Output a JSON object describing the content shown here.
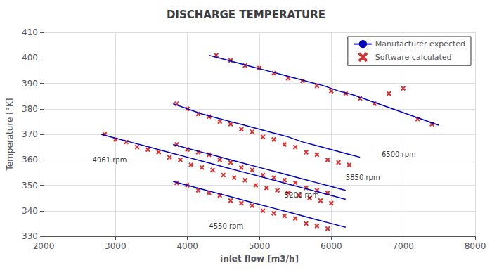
{
  "chart_data": {
    "type": "line",
    "title": "DISCHARGE TEMPERATURE",
    "xlabel": "inlet flow [m3/h]",
    "ylabel": "Temperature [°K]",
    "xlim": [
      2000,
      8000
    ],
    "ylim": [
      330,
      410
    ],
    "xticks": [
      2000,
      3000,
      4000,
      5000,
      6000,
      7000,
      8000
    ],
    "yticks": [
      330,
      340,
      350,
      360,
      370,
      380,
      390,
      400,
      410
    ],
    "grid": true,
    "legend": "upper right",
    "series": [
      {
        "name": "Manufacturer expected",
        "type": "line",
        "marker": "none",
        "color": "#0000bb",
        "x": [
          3800,
          4000,
          4200,
          4400,
          4600,
          4800,
          5000,
          5200,
          5400,
          5600,
          5800,
          6000,
          6200
        ],
        "values": [
          351.5,
          350,
          348.5,
          347,
          345.5,
          344,
          342.5,
          341,
          339.5,
          338,
          336.5,
          335,
          333.5
        ]
      },
      {
        "name": "Software calculated",
        "type": "scatter",
        "marker": "x",
        "color": "#cc0000",
        "x": [
          3850,
          4000,
          4150,
          4300,
          4450,
          4600,
          4750,
          4900,
          5050,
          5200,
          5350,
          5500,
          5650,
          5800,
          5950
        ],
        "values": [
          351,
          350,
          348,
          347,
          346,
          344,
          343,
          342,
          340,
          339,
          338,
          337,
          335,
          334,
          333
        ]
      },
      {
        "name": "Manufacturer expected",
        "type": "line",
        "marker": "none",
        "color": "#0000bb",
        "x": [
          2800,
          3000,
          3200,
          3400,
          3600,
          3800,
          4000,
          4200,
          4400,
          4600,
          4800,
          5000,
          5200,
          5400,
          5600,
          5800,
          6000,
          6200
        ],
        "values": [
          370,
          368.5,
          367,
          365.5,
          364,
          362.5,
          361,
          359.5,
          358,
          356.5,
          355,
          353.5,
          352,
          350.5,
          349,
          347.5,
          346,
          344.5
        ]
      },
      {
        "name": "Software calculated",
        "type": "scatter",
        "marker": "x",
        "color": "#cc0000",
        "x": [
          2850,
          3000,
          3150,
          3300,
          3450,
          3600,
          3750,
          3900,
          4050,
          4200,
          4350,
          4500,
          4650,
          4800,
          4950,
          5100,
          5250,
          5400,
          5550,
          5700,
          5850,
          6000
        ],
        "values": [
          370,
          368,
          367,
          365,
          364,
          363,
          361,
          360,
          358,
          357,
          356,
          354,
          353,
          352,
          350,
          349,
          348,
          347,
          346,
          345,
          344,
          343
        ]
      },
      {
        "name": "Manufacturer expected",
        "type": "line",
        "marker": "none",
        "color": "#0000bb",
        "x": [
          3800,
          4000,
          4200,
          4400,
          4600,
          4800,
          5000,
          5200,
          5400,
          5600,
          5800,
          6000,
          6200
        ],
        "values": [
          366,
          364.5,
          363,
          361.5,
          360,
          358.5,
          357,
          355.5,
          354,
          352.5,
          351,
          349.5,
          348
        ]
      },
      {
        "name": "Software calculated",
        "type": "scatter",
        "marker": "x",
        "color": "#cc0000",
        "x": [
          3850,
          4000,
          4150,
          4300,
          4450,
          4600,
          4750,
          4900,
          5050,
          5200,
          5350,
          5500,
          5650,
          5800,
          5950
        ],
        "values": [
          366,
          364,
          363,
          362,
          360,
          359,
          357,
          356,
          354,
          353,
          352,
          351,
          349,
          348,
          347
        ]
      },
      {
        "name": "Manufacturer expected",
        "type": "line",
        "marker": "none",
        "color": "#0000bb",
        "x": [
          3800,
          4000,
          4200,
          4400,
          4600,
          4800,
          5000,
          5200,
          5400,
          5600,
          5800,
          6000,
          6200,
          6400
        ],
        "values": [
          382,
          380,
          378,
          376.5,
          375,
          373.5,
          372,
          370.5,
          369,
          367,
          365.5,
          364,
          362.5,
          361
        ]
      },
      {
        "name": "Software calculated",
        "type": "scatter",
        "marker": "x",
        "color": "#cc0000",
        "x": [
          3850,
          4000,
          4150,
          4300,
          4450,
          4600,
          4750,
          4900,
          5050,
          5200,
          5350,
          5500,
          5650,
          5800,
          5950,
          6100,
          6250
        ],
        "values": [
          382,
          380,
          378,
          377,
          375,
          374,
          372,
          371,
          369,
          368,
          366,
          365,
          363,
          362,
          360,
          359,
          358
        ]
      },
      {
        "name": "Manufacturer expected",
        "type": "line",
        "marker": "none",
        "color": "#0000bb",
        "x": [
          4300,
          4500,
          4700,
          4900,
          5100,
          5300,
          5500,
          5700,
          5900,
          6100,
          6300,
          6500,
          6700,
          6900,
          7100,
          7300,
          7500
        ],
        "values": [
          401,
          399.5,
          398,
          396.5,
          395,
          393.5,
          392,
          390.5,
          389,
          387,
          385.5,
          383.5,
          381.5,
          379.5,
          377.5,
          375.5,
          373.5
        ]
      },
      {
        "name": "Software calculated",
        "type": "scatter",
        "marker": "x",
        "color": "#cc0000",
        "x": [
          4400,
          4600,
          4800,
          5000,
          5200,
          5400,
          5600,
          5800,
          6000,
          6200,
          6400,
          6600,
          6800,
          7000,
          7200,
          7400
        ],
        "values": [
          401,
          399,
          397,
          396,
          394,
          392,
          391,
          389,
          387,
          386,
          384,
          382,
          386,
          388,
          376,
          374
        ]
      }
    ],
    "annotations": [
      {
        "text": "4550 rpm",
        "x": 4300,
        "y": 336
      },
      {
        "text": "4961 rpm",
        "x": 2680,
        "y": 362
      },
      {
        "text": "5200 rpm",
        "x": 5350,
        "y": 348
      },
      {
        "text": "5850 rpm",
        "x": 6200,
        "y": 355
      },
      {
        "text": "6500 rpm",
        "x": 6700,
        "y": 364
      }
    ]
  }
}
